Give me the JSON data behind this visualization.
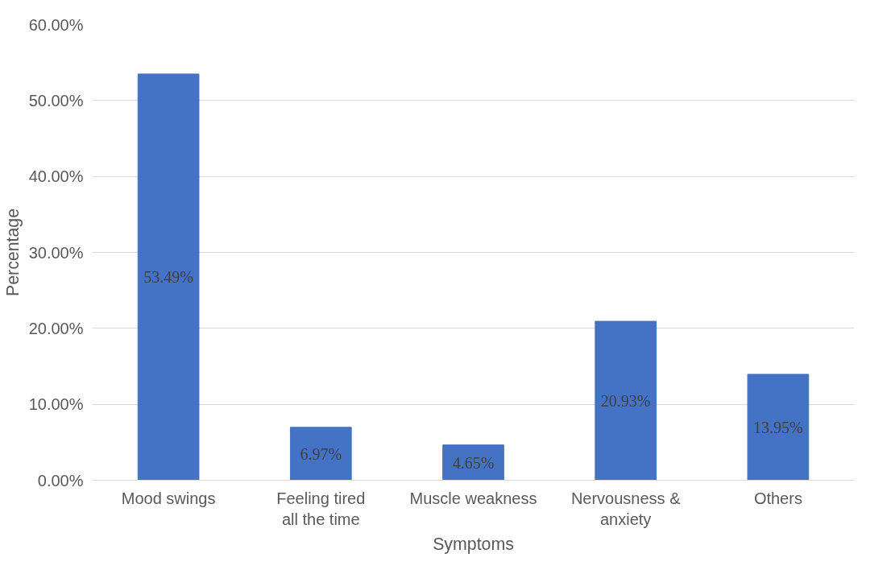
{
  "chart_data": {
    "type": "bar",
    "xlabel": "Symptoms",
    "ylabel": "Percentage",
    "categories": [
      "Mood swings",
      "Feeling tired all the time",
      "Muscle weakness",
      "Nervousness & anxiety",
      "Others"
    ],
    "values": [
      53.49,
      6.97,
      4.65,
      20.93,
      13.95
    ],
    "value_labels": [
      "53.49%",
      "6.97%",
      "4.65%",
      "20.93%",
      "13.95%"
    ],
    "color": "#4472c4",
    "ylim": [
      0,
      60
    ],
    "yticks": [
      {
        "value": 0,
        "label": "0.00%"
      },
      {
        "value": 10,
        "label": "10.00%"
      },
      {
        "value": 20,
        "label": "20.00%"
      },
      {
        "value": 30,
        "label": "30.00%"
      },
      {
        "value": 40,
        "label": "40.00%"
      },
      {
        "value": 50,
        "label": "50.00%"
      },
      {
        "value": 60,
        "label": "60.00%"
      }
    ],
    "grid": "y"
  }
}
